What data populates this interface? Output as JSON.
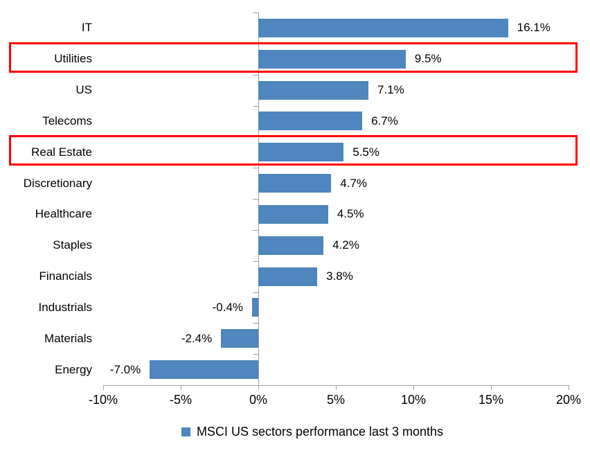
{
  "chart_data": {
    "type": "bar",
    "orientation": "horizontal",
    "title": "",
    "categories": [
      "IT",
      "Utilities",
      "US",
      "Telecoms",
      "Real Estate",
      "Discretionary",
      "Healthcare",
      "Staples",
      "Financials",
      "Industrials",
      "Materials",
      "Energy"
    ],
    "values": [
      16.1,
      9.5,
      7.1,
      6.7,
      5.5,
      4.7,
      4.5,
      4.2,
      3.8,
      -0.4,
      -2.4,
      -7.0
    ],
    "value_labels": [
      "16.1%",
      "9.5%",
      "7.1%",
      "6.7%",
      "5.5%",
      "4.7%",
      "4.5%",
      "4.2%",
      "3.8%",
      "-0.4%",
      "-2.4%",
      "-7.0%"
    ],
    "xlim": [
      -10,
      20
    ],
    "x_ticks": [
      -10,
      -5,
      0,
      5,
      10,
      15,
      20
    ],
    "x_tick_labels": [
      "-10%",
      "-5%",
      "0%",
      "5%",
      "10%",
      "15%",
      "20%"
    ],
    "grid": false,
    "legend": {
      "label": "MSCI US sectors performance last 3 months",
      "position": "bottom"
    },
    "highlighted_categories": [
      "Utilities",
      "Real Estate"
    ],
    "colors": {
      "bar": "#4E86BD",
      "highlight_box": "#FF0000",
      "axis": "#A0A0A0",
      "text": "#000000"
    }
  }
}
